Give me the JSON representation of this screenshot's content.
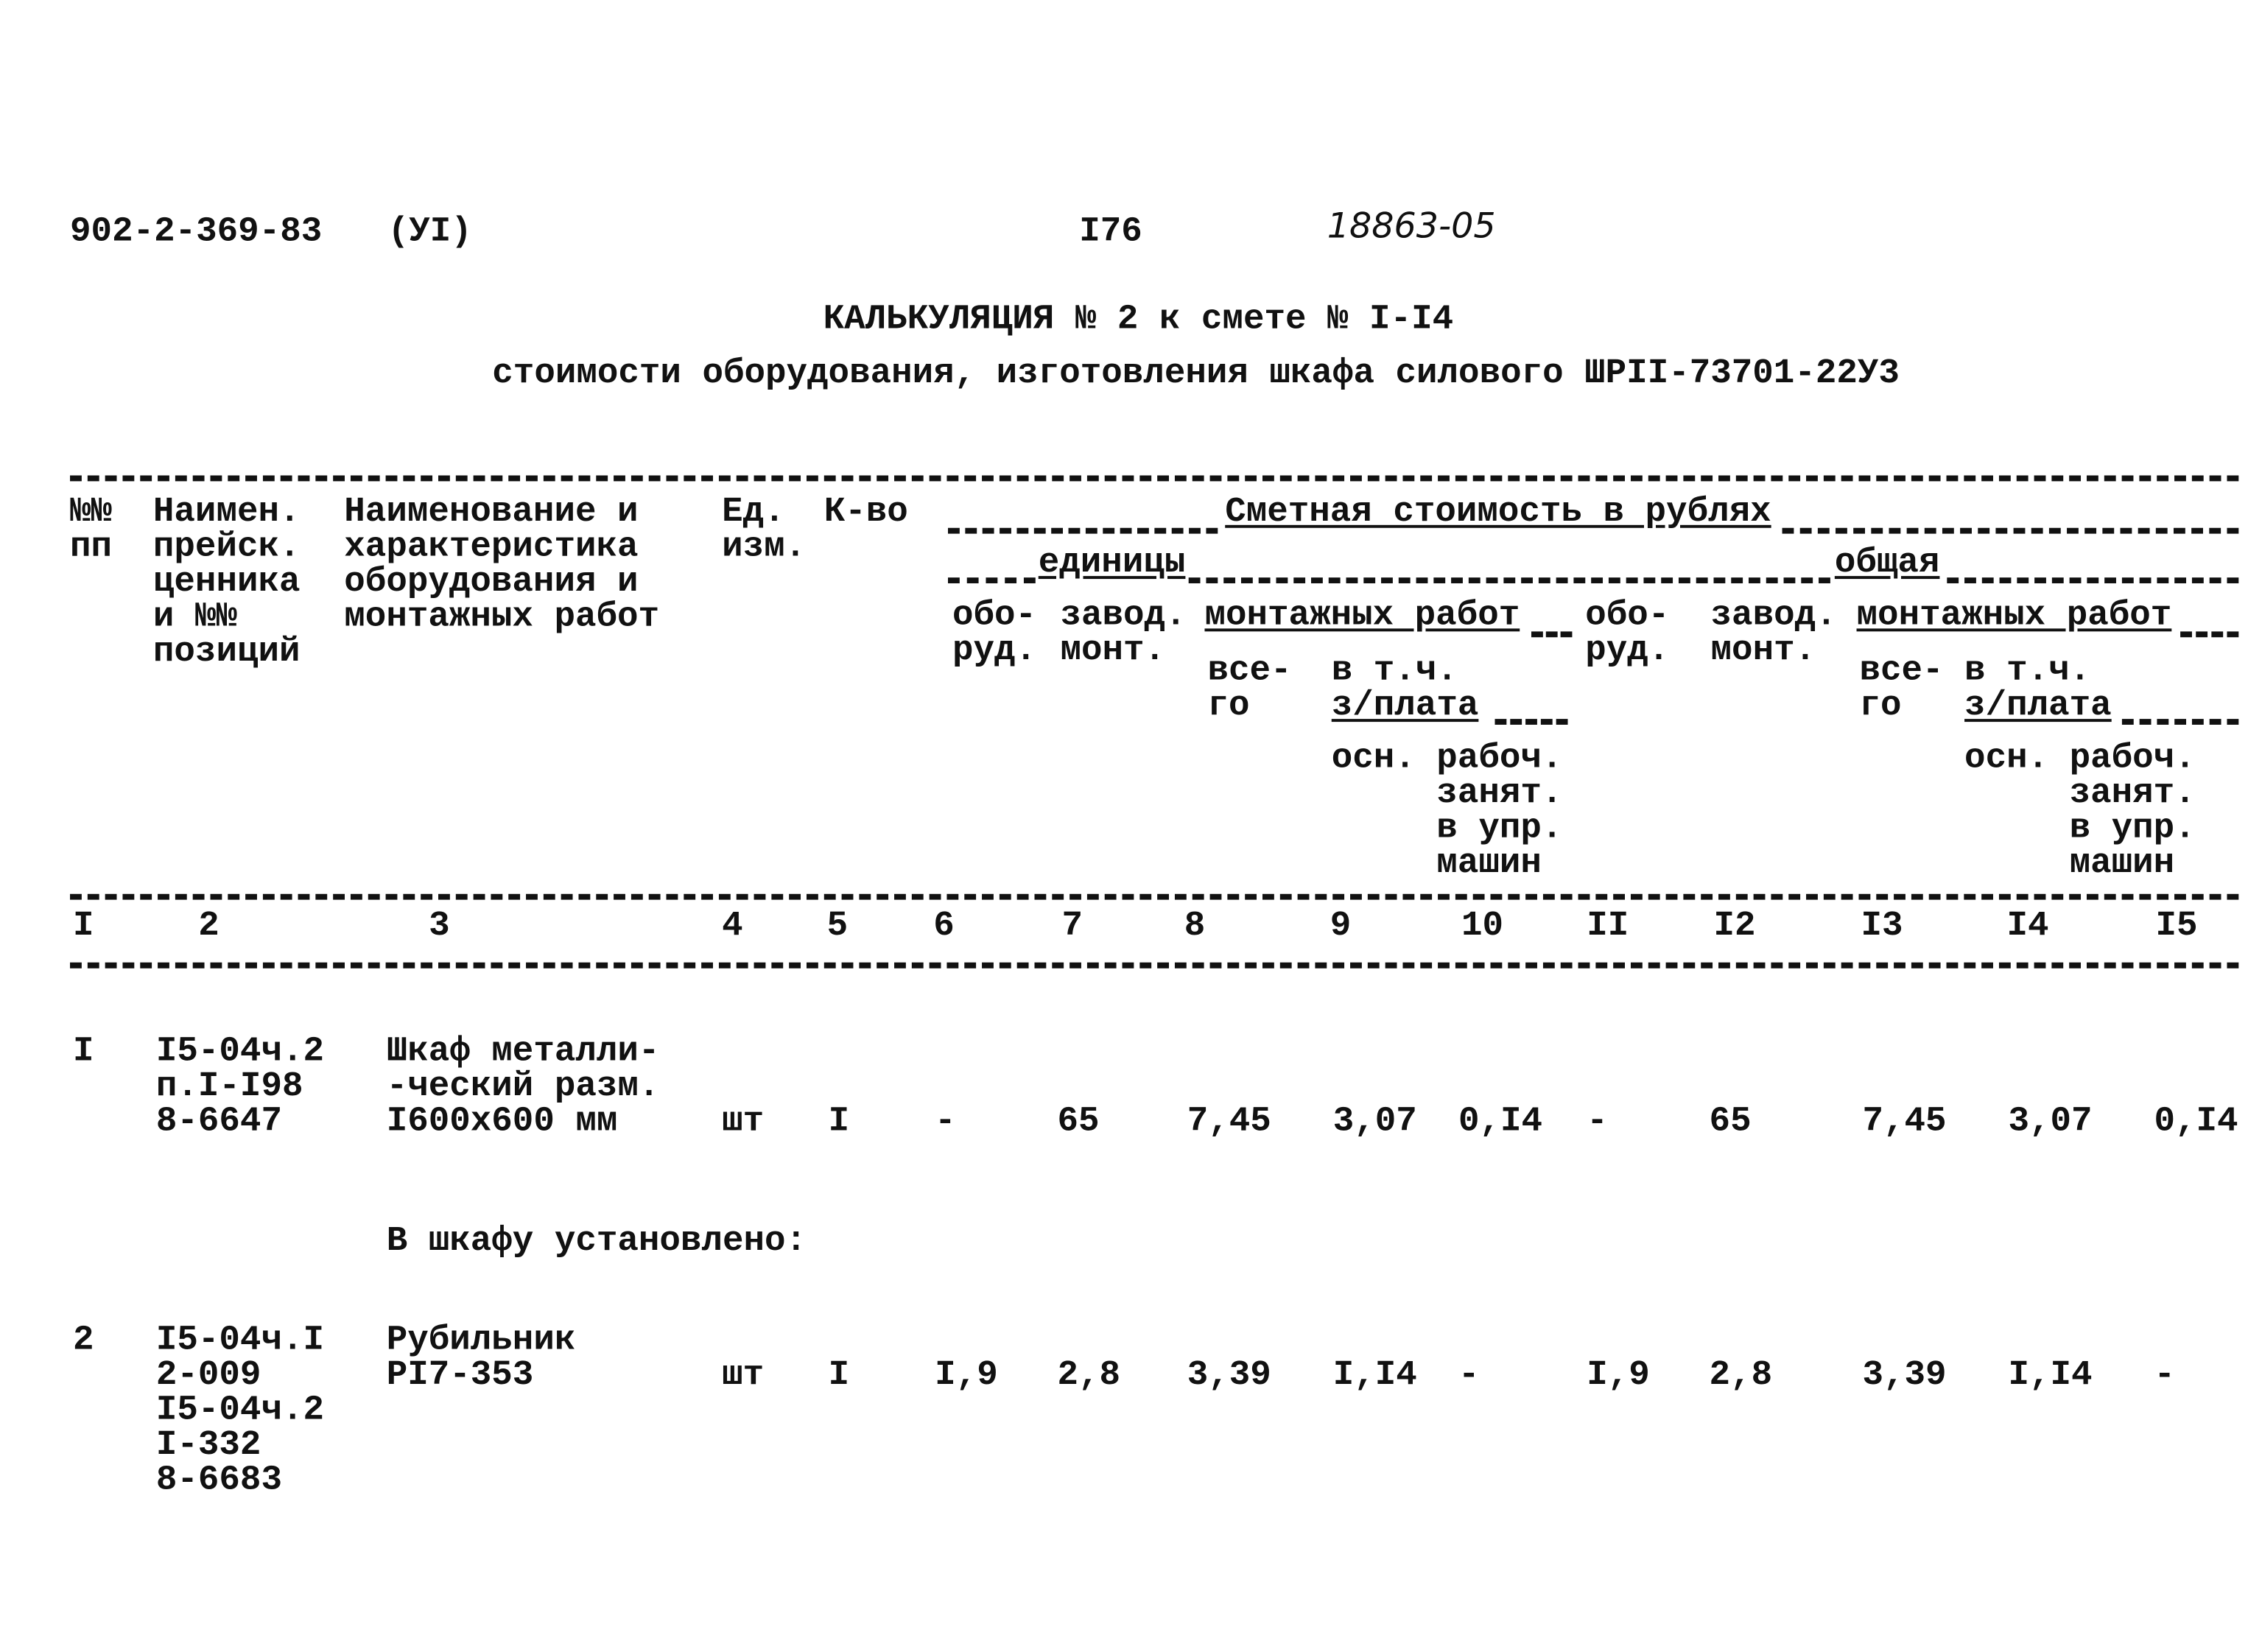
{
  "header": {
    "doc_code": "902-2-369-83",
    "doc_part": "(УI)",
    "page_number": "I76",
    "handwritten_number": "18863-05"
  },
  "title": {
    "line1": "КАЛЬКУЛЯЦИЯ № 2 к смете № I-I4",
    "line2": "стоимости оборудования, изготовления шкафа силового ШРII-73701-22У3"
  },
  "table_header": {
    "col1": [
      "№№",
      "пп"
    ],
    "col2": [
      "Наимен.",
      "прейск.",
      "ценника",
      "и №№",
      "позиций"
    ],
    "col3": [
      "Наименование и",
      "характеристика",
      "оборудования и",
      "монтажных работ"
    ],
    "col4": [
      "Ед.",
      "изм."
    ],
    "col5": "К-во",
    "cost_group": "Сметная стоимость в рублях",
    "unit_group": "единицы",
    "total_group": "общая",
    "equipment": [
      "обо-",
      "руд."
    ],
    "factory_install": [
      "завод.",
      "монт."
    ],
    "install_works": "монтажных работ",
    "total": [
      "все-",
      "го"
    ],
    "incl": "в т.ч.",
    "wages": "з/плата",
    "basic": "осн.",
    "machine_workers": [
      "рабоч.",
      "занят.",
      "в упр.",
      "машин"
    ]
  },
  "column_numbers": [
    "I",
    "2",
    "3",
    "4",
    "5",
    "6",
    "7",
    "8",
    "9",
    "10",
    "II",
    "I2",
    "I3",
    "I4",
    "I5"
  ],
  "rows": [
    {
      "num": "I",
      "price_ref": [
        "I5-04ч.2",
        "п.I-I98",
        "8-6647"
      ],
      "name": [
        "Шкаф металли-",
        "-ческий разм.",
        "I600х600 мм"
      ],
      "values": [
        "шт",
        "I",
        "-",
        "65",
        "7,45",
        "3,07",
        "0,I4",
        "-",
        "65",
        "7,45",
        "3,07",
        "0,I4"
      ]
    },
    {
      "num": "2",
      "price_ref": [
        "I5-04ч.I",
        "2-009",
        "I5-04ч.2",
        "I-332",
        "8-6683"
      ],
      "name": [
        "Рубильник",
        "РI7-353"
      ],
      "values": [
        "шт",
        "I",
        "I,9",
        "2,8",
        "3,39",
        "I,I4",
        "-",
        "I,9",
        "2,8",
        "3,39",
        "I,I4",
        "-"
      ]
    }
  ],
  "section_note": "В шкафу установлено:"
}
